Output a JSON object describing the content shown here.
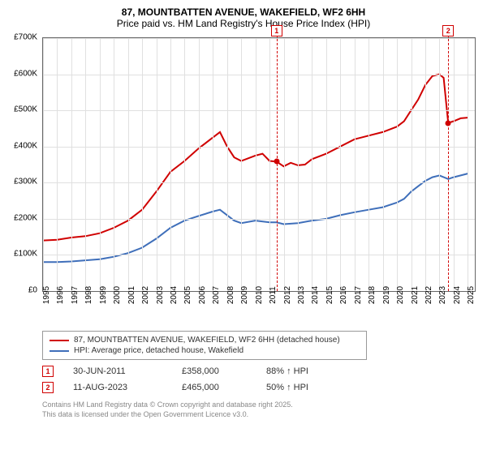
{
  "title": "87, MOUNTBATTEN AVENUE, WAKEFIELD, WF2 6HH",
  "subtitle": "Price paid vs. HM Land Registry's House Price Index (HPI)",
  "chart": {
    "type": "line",
    "background_color": "#ffffff",
    "grid_color": "#e0e0e0",
    "border_color": "#666666",
    "xlim": [
      1995,
      2025.5
    ],
    "ylim": [
      0,
      700000
    ],
    "ytick_step": 100000,
    "yticks": [
      "£0",
      "£100K",
      "£200K",
      "£300K",
      "£400K",
      "£500K",
      "£600K",
      "£700K"
    ],
    "xticks": [
      "1995",
      "1996",
      "1997",
      "1998",
      "1999",
      "2000",
      "2001",
      "2002",
      "2003",
      "2004",
      "2005",
      "2006",
      "2007",
      "2008",
      "2009",
      "2010",
      "2011",
      "2012",
      "2013",
      "2014",
      "2015",
      "2016",
      "2017",
      "2018",
      "2019",
      "2020",
      "2021",
      "2022",
      "2023",
      "2024",
      "2025"
    ],
    "tick_fontsize": 10,
    "markers": [
      {
        "id": "1",
        "x": 2011.5,
        "price_y": 358000
      },
      {
        "id": "2",
        "x": 2023.62,
        "price_y": 465000
      }
    ],
    "marker_color": "#d00000",
    "series": [
      {
        "name": "price_paid",
        "label": "87, MOUNTBATTEN AVENUE, WAKEFIELD, WF2 6HH (detached house)",
        "color": "#d00000",
        "line_width": 2,
        "points": [
          [
            1995,
            140000
          ],
          [
            1996,
            142000
          ],
          [
            1997,
            148000
          ],
          [
            1998,
            152000
          ],
          [
            1999,
            160000
          ],
          [
            2000,
            175000
          ],
          [
            2001,
            195000
          ],
          [
            2002,
            225000
          ],
          [
            2003,
            275000
          ],
          [
            2004,
            330000
          ],
          [
            2005,
            360000
          ],
          [
            2006,
            395000
          ],
          [
            2007,
            425000
          ],
          [
            2007.5,
            440000
          ],
          [
            2008,
            400000
          ],
          [
            2008.5,
            370000
          ],
          [
            2009,
            360000
          ],
          [
            2010,
            375000
          ],
          [
            2010.5,
            380000
          ],
          [
            2011,
            360000
          ],
          [
            2011.5,
            358000
          ],
          [
            2012,
            345000
          ],
          [
            2012.5,
            355000
          ],
          [
            2013,
            348000
          ],
          [
            2013.5,
            350000
          ],
          [
            2014,
            365000
          ],
          [
            2015,
            380000
          ],
          [
            2016,
            400000
          ],
          [
            2017,
            420000
          ],
          [
            2018,
            430000
          ],
          [
            2019,
            440000
          ],
          [
            2020,
            455000
          ],
          [
            2020.5,
            470000
          ],
          [
            2021,
            500000
          ],
          [
            2021.5,
            530000
          ],
          [
            2022,
            570000
          ],
          [
            2022.5,
            595000
          ],
          [
            2023,
            600000
          ],
          [
            2023.3,
            590000
          ],
          [
            2023.62,
            465000
          ],
          [
            2024,
            470000
          ],
          [
            2024.5,
            478000
          ],
          [
            2025,
            480000
          ]
        ]
      },
      {
        "name": "hpi",
        "label": "HPI: Average price, detached house, Wakefield",
        "color": "#3f6fba",
        "line_width": 2,
        "points": [
          [
            1995,
            80000
          ],
          [
            1996,
            80000
          ],
          [
            1997,
            82000
          ],
          [
            1998,
            85000
          ],
          [
            1999,
            88000
          ],
          [
            2000,
            95000
          ],
          [
            2001,
            105000
          ],
          [
            2002,
            120000
          ],
          [
            2003,
            145000
          ],
          [
            2004,
            175000
          ],
          [
            2005,
            195000
          ],
          [
            2006,
            208000
          ],
          [
            2007,
            220000
          ],
          [
            2007.5,
            225000
          ],
          [
            2008,
            210000
          ],
          [
            2008.5,
            195000
          ],
          [
            2009,
            188000
          ],
          [
            2010,
            195000
          ],
          [
            2011,
            190000
          ],
          [
            2011.5,
            190000
          ],
          [
            2012,
            185000
          ],
          [
            2013,
            188000
          ],
          [
            2014,
            195000
          ],
          [
            2015,
            200000
          ],
          [
            2016,
            210000
          ],
          [
            2017,
            218000
          ],
          [
            2018,
            225000
          ],
          [
            2019,
            232000
          ],
          [
            2020,
            245000
          ],
          [
            2020.5,
            255000
          ],
          [
            2021,
            275000
          ],
          [
            2021.5,
            290000
          ],
          [
            2022,
            305000
          ],
          [
            2022.5,
            315000
          ],
          [
            2023,
            320000
          ],
          [
            2023.62,
            310000
          ],
          [
            2024,
            315000
          ],
          [
            2024.5,
            320000
          ],
          [
            2025,
            325000
          ]
        ]
      }
    ]
  },
  "legend": {
    "border_color": "#999999",
    "fontsize": 10,
    "items": [
      {
        "color": "#d00000",
        "label": "87, MOUNTBATTEN AVENUE, WAKEFIELD, WF2 6HH (detached house)"
      },
      {
        "color": "#3f6fba",
        "label": "HPI: Average price, detached house, Wakefield"
      }
    ]
  },
  "marker_table": {
    "rows": [
      {
        "id": "1",
        "date": "30-JUN-2011",
        "price": "£358,000",
        "pct": "88% ↑ HPI"
      },
      {
        "id": "2",
        "date": "11-AUG-2023",
        "price": "£465,000",
        "pct": "50% ↑ HPI"
      }
    ]
  },
  "footer": {
    "line1": "Contains HM Land Registry data © Crown copyright and database right 2025.",
    "line2": "This data is licensed under the Open Government Licence v3.0."
  }
}
